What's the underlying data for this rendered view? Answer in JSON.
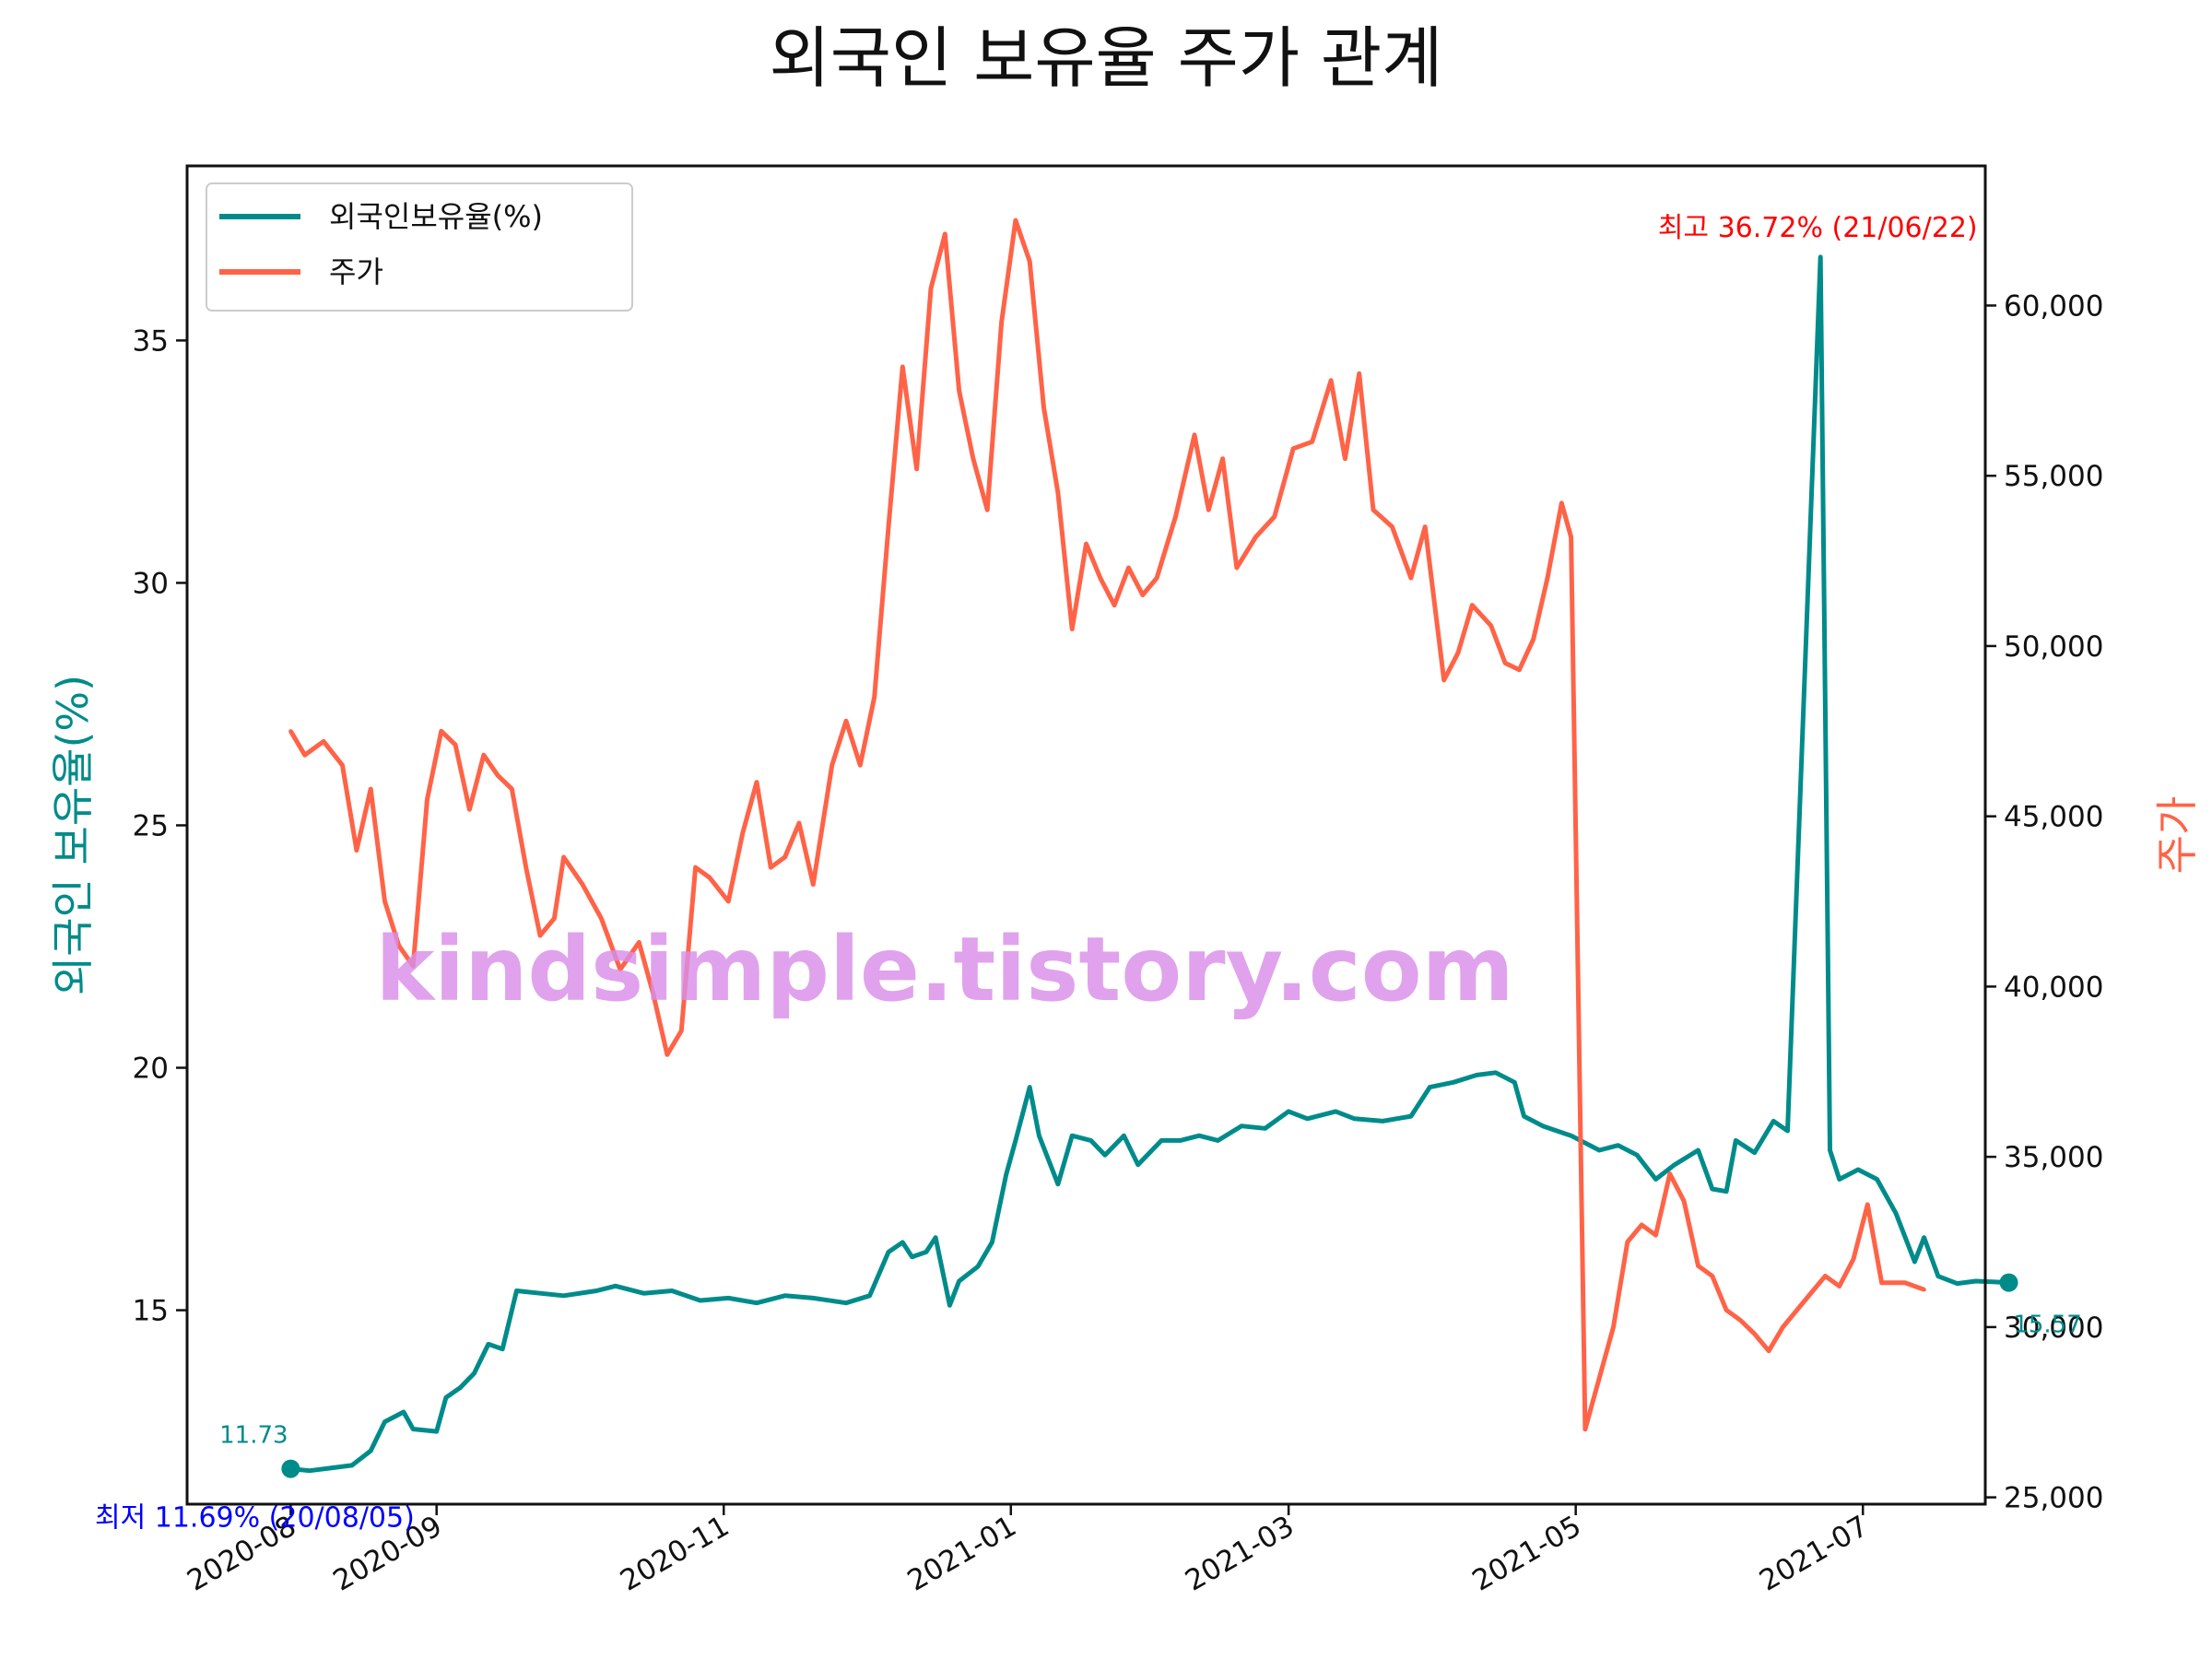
{
  "chart_data": {
    "type": "line",
    "title": "외국인 보유율 주가 관계",
    "ylabel_left": "외국인 보유율(%)",
    "ylabel_right": "주가",
    "ylim_left": [
      11.0,
      38.6
    ],
    "ylim_right": [
      24800,
      64100
    ],
    "xlim": [
      "2020-07-10",
      "2021-07-27"
    ],
    "grid": false,
    "legend_position": "top-left",
    "x_ticks": [
      {
        "date": "2020-08-01",
        "label": "2020-08"
      },
      {
        "date": "2020-09-01",
        "label": "2020-09"
      },
      {
        "date": "2020-11-01",
        "label": "2020-11"
      },
      {
        "date": "2021-01-01",
        "label": "2021-01"
      },
      {
        "date": "2021-03-01",
        "label": "2021-03"
      },
      {
        "date": "2021-05-01",
        "label": "2021-05"
      },
      {
        "date": "2021-07-01",
        "label": "2021-07"
      }
    ],
    "y_ticks_left": [
      "15",
      "20",
      "25",
      "30",
      "35"
    ],
    "y_ticks_left_values": [
      15,
      20,
      25,
      30,
      35
    ],
    "y_ticks_right": [
      "25,000",
      "30,000",
      "35,000",
      "40,000",
      "45,000",
      "50,000",
      "55,000",
      "60,000"
    ],
    "y_ticks_right_values": [
      25000,
      30000,
      35000,
      40000,
      45000,
      50000,
      55000,
      60000
    ],
    "series": [
      {
        "name": "외국인보유율(%)",
        "axis": "left",
        "color": "#008b8b",
        "points": [
          [
            "2020-08-01",
            11.73
          ],
          [
            "2020-08-05",
            11.69
          ],
          [
            "2020-08-10",
            11.75
          ],
          [
            "2020-08-14",
            11.8
          ],
          [
            "2020-08-18",
            12.1
          ],
          [
            "2020-08-21",
            12.7
          ],
          [
            "2020-08-25",
            12.9
          ],
          [
            "2020-08-27",
            12.55
          ],
          [
            "2020-09-01",
            12.5
          ],
          [
            "2020-09-03",
            13.2
          ],
          [
            "2020-09-06",
            13.4
          ],
          [
            "2020-09-09",
            13.7
          ],
          [
            "2020-09-12",
            14.3
          ],
          [
            "2020-09-15",
            14.2
          ],
          [
            "2020-09-18",
            15.4
          ],
          [
            "2020-09-23",
            15.35
          ],
          [
            "2020-09-28",
            15.3
          ],
          [
            "2020-10-05",
            15.4
          ],
          [
            "2020-10-09",
            15.5
          ],
          [
            "2020-10-15",
            15.35
          ],
          [
            "2020-10-21",
            15.4
          ],
          [
            "2020-10-27",
            15.2
          ],
          [
            "2020-11-02",
            15.25
          ],
          [
            "2020-11-08",
            15.15
          ],
          [
            "2020-11-14",
            15.3
          ],
          [
            "2020-11-20",
            15.25
          ],
          [
            "2020-11-27",
            15.15
          ],
          [
            "2020-12-02",
            15.3
          ],
          [
            "2020-12-06",
            16.2
          ],
          [
            "2020-12-09",
            16.4
          ],
          [
            "2020-12-11",
            16.1
          ],
          [
            "2020-12-14",
            16.2
          ],
          [
            "2020-12-16",
            16.5
          ],
          [
            "2020-12-19",
            15.1
          ],
          [
            "2020-12-21",
            15.6
          ],
          [
            "2020-12-25",
            15.9
          ],
          [
            "2020-12-28",
            16.4
          ],
          [
            "2020-12-31",
            17.8
          ],
          [
            "2021-01-02",
            18.5
          ],
          [
            "2021-01-05",
            19.6
          ],
          [
            "2021-01-07",
            18.6
          ],
          [
            "2021-01-11",
            17.6
          ],
          [
            "2021-01-14",
            18.6
          ],
          [
            "2021-01-18",
            18.5
          ],
          [
            "2021-01-21",
            18.2
          ],
          [
            "2021-01-25",
            18.6
          ],
          [
            "2021-01-28",
            18.0
          ],
          [
            "2021-02-02",
            18.5
          ],
          [
            "2021-02-06",
            18.5
          ],
          [
            "2021-02-10",
            18.6
          ],
          [
            "2021-02-14",
            18.5
          ],
          [
            "2021-02-19",
            18.8
          ],
          [
            "2021-02-24",
            18.75
          ],
          [
            "2021-03-01",
            19.1
          ],
          [
            "2021-03-05",
            18.95
          ],
          [
            "2021-03-11",
            19.1
          ],
          [
            "2021-03-15",
            18.95
          ],
          [
            "2021-03-21",
            18.9
          ],
          [
            "2021-03-27",
            19.0
          ],
          [
            "2021-03-31",
            19.6
          ],
          [
            "2021-04-05",
            19.7
          ],
          [
            "2021-04-10",
            19.85
          ],
          [
            "2021-04-14",
            19.9
          ],
          [
            "2021-04-18",
            19.7
          ],
          [
            "2021-04-20",
            19.0
          ],
          [
            "2021-04-24",
            18.8
          ],
          [
            "2021-04-30",
            18.6
          ],
          [
            "2021-05-06",
            18.3
          ],
          [
            "2021-05-10",
            18.4
          ],
          [
            "2021-05-14",
            18.2
          ],
          [
            "2021-05-18",
            17.7
          ],
          [
            "2021-05-22",
            18.0
          ],
          [
            "2021-05-27",
            18.3
          ],
          [
            "2021-05-30",
            17.5
          ],
          [
            "2021-06-02",
            17.45
          ],
          [
            "2021-06-04",
            18.5
          ],
          [
            "2021-06-08",
            18.25
          ],
          [
            "2021-06-12",
            18.9
          ],
          [
            "2021-06-15",
            18.7
          ],
          [
            "2021-06-22",
            36.72
          ],
          [
            "2021-06-24",
            18.3
          ],
          [
            "2021-06-26",
            17.7
          ],
          [
            "2021-06-30",
            17.9
          ],
          [
            "2021-07-04",
            17.7
          ],
          [
            "2021-07-08",
            17.0
          ],
          [
            "2021-07-12",
            16.0
          ],
          [
            "2021-07-14",
            16.5
          ],
          [
            "2021-07-17",
            15.7
          ],
          [
            "2021-07-21",
            15.55
          ],
          [
            "2021-07-25",
            15.6
          ],
          [
            "2021-08-01",
            15.57
          ]
        ]
      },
      {
        "name": "주가",
        "axis": "right",
        "color": "#ff6347",
        "points": [
          [
            "2020-08-01",
            47500
          ],
          [
            "2020-08-04",
            46800
          ],
          [
            "2020-08-08",
            47200
          ],
          [
            "2020-08-12",
            46500
          ],
          [
            "2020-08-15",
            44000
          ],
          [
            "2020-08-18",
            45800
          ],
          [
            "2020-08-21",
            42500
          ],
          [
            "2020-08-24",
            41200
          ],
          [
            "2020-08-27",
            40600
          ],
          [
            "2020-08-30",
            45500
          ],
          [
            "2020-09-02",
            47500
          ],
          [
            "2020-09-05",
            47100
          ],
          [
            "2020-09-08",
            45200
          ],
          [
            "2020-09-11",
            46800
          ],
          [
            "2020-09-14",
            46200
          ],
          [
            "2020-09-17",
            45800
          ],
          [
            "2020-09-20",
            43500
          ],
          [
            "2020-09-23",
            41500
          ],
          [
            "2020-09-26",
            42000
          ],
          [
            "2020-09-28",
            43800
          ],
          [
            "2020-10-02",
            43000
          ],
          [
            "2020-10-06",
            42000
          ],
          [
            "2020-10-10",
            40500
          ],
          [
            "2020-10-14",
            41300
          ],
          [
            "2020-10-17",
            39800
          ],
          [
            "2020-10-20",
            38000
          ],
          [
            "2020-10-23",
            38700
          ],
          [
            "2020-10-26",
            43500
          ],
          [
            "2020-10-29",
            43200
          ],
          [
            "2020-11-02",
            42500
          ],
          [
            "2020-11-05",
            44500
          ],
          [
            "2020-11-08",
            46000
          ],
          [
            "2020-11-11",
            43500
          ],
          [
            "2020-11-14",
            43800
          ],
          [
            "2020-11-17",
            44800
          ],
          [
            "2020-11-20",
            43000
          ],
          [
            "2020-11-24",
            46500
          ],
          [
            "2020-11-27",
            47800
          ],
          [
            "2020-11-30",
            46500
          ],
          [
            "2020-12-03",
            48500
          ],
          [
            "2020-12-06",
            53500
          ],
          [
            "2020-12-09",
            58200
          ],
          [
            "2020-12-12",
            55200
          ],
          [
            "2020-12-15",
            60500
          ],
          [
            "2020-12-18",
            62100
          ],
          [
            "2020-12-21",
            57500
          ],
          [
            "2020-12-24",
            55500
          ],
          [
            "2020-12-27",
            54000
          ],
          [
            "2020-12-30",
            59500
          ],
          [
            "2021-01-02",
            62500
          ],
          [
            "2021-01-05",
            61300
          ],
          [
            "2021-01-08",
            57000
          ],
          [
            "2021-01-11",
            54500
          ],
          [
            "2021-01-14",
            50500
          ],
          [
            "2021-01-17",
            53000
          ],
          [
            "2021-01-20",
            52000
          ],
          [
            "2021-01-23",
            51200
          ],
          [
            "2021-01-26",
            52300
          ],
          [
            "2021-01-29",
            51500
          ],
          [
            "2021-02-01",
            52000
          ],
          [
            "2021-02-05",
            53800
          ],
          [
            "2021-02-09",
            56200
          ],
          [
            "2021-02-12",
            54000
          ],
          [
            "2021-02-15",
            55500
          ],
          [
            "2021-02-18",
            52300
          ],
          [
            "2021-02-22",
            53200
          ],
          [
            "2021-02-26",
            53800
          ],
          [
            "2021-03-02",
            55800
          ],
          [
            "2021-03-06",
            56000
          ],
          [
            "2021-03-10",
            57800
          ],
          [
            "2021-03-13",
            55500
          ],
          [
            "2021-03-16",
            58000
          ],
          [
            "2021-03-19",
            54000
          ],
          [
            "2021-03-23",
            53500
          ],
          [
            "2021-03-27",
            52000
          ],
          [
            "2021-03-30",
            53500
          ],
          [
            "2021-04-03",
            49000
          ],
          [
            "2021-04-06",
            49800
          ],
          [
            "2021-04-09",
            51200
          ],
          [
            "2021-04-13",
            50600
          ],
          [
            "2021-04-16",
            49500
          ],
          [
            "2021-04-19",
            49300
          ],
          [
            "2021-04-22",
            50200
          ],
          [
            "2021-04-25",
            52000
          ],
          [
            "2021-04-28",
            54200
          ],
          [
            "2021-04-30",
            53200
          ],
          [
            "2021-05-03",
            27000
          ],
          [
            "2021-05-06",
            28500
          ],
          [
            "2021-05-09",
            30000
          ],
          [
            "2021-05-12",
            32500
          ],
          [
            "2021-05-15",
            33000
          ],
          [
            "2021-05-18",
            32700
          ],
          [
            "2021-05-21",
            34500
          ],
          [
            "2021-05-24",
            33700
          ],
          [
            "2021-05-27",
            31800
          ],
          [
            "2021-05-30",
            31500
          ],
          [
            "2021-06-02",
            30500
          ],
          [
            "2021-06-05",
            30200
          ],
          [
            "2021-06-08",
            29800
          ],
          [
            "2021-06-11",
            29300
          ],
          [
            "2021-06-14",
            30000
          ],
          [
            "2021-06-17",
            30500
          ],
          [
            "2021-06-20",
            31000
          ],
          [
            "2021-06-23",
            31500
          ],
          [
            "2021-06-26",
            31200
          ],
          [
            "2021-06-29",
            32000
          ],
          [
            "2021-07-02",
            33600
          ],
          [
            "2021-07-05",
            31300
          ],
          [
            "2021-07-10",
            31300
          ],
          [
            "2021-07-14",
            31100
          ]
        ]
      }
    ],
    "annotations": {
      "max": {
        "label": "최고 36.72% (21/06/22)",
        "date": "2021-06-22",
        "value": 36.72,
        "color": "#ff0000"
      },
      "min": {
        "label": "최저 11.69% (20/08/05)",
        "date": "2020-08-05",
        "value": 11.69,
        "color": "#0000ff"
      },
      "first": {
        "label": "11.73",
        "date": "2020-08-01",
        "value": 11.73,
        "color": "#008b8b"
      },
      "last": {
        "label": "15.57",
        "date": "2021-08-01",
        "value": 15.57,
        "color": "#008b8b"
      }
    },
    "watermark": "kindsimple.tistory.com",
    "watermark_color": "#d98ee8"
  }
}
